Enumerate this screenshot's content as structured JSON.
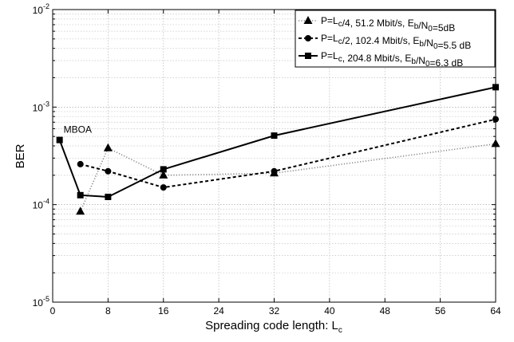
{
  "chart_data": {
    "type": "line",
    "xlabel": "Spreading code length: L",
    "xlabel_sub": "c",
    "ylabel": "BER",
    "xscale": "linear",
    "yscale": "log",
    "xlim": [
      0,
      64
    ],
    "ylim": [
      1e-05,
      0.01
    ],
    "xticks": [
      0,
      8,
      16,
      24,
      32,
      40,
      48,
      56,
      64
    ],
    "yticks": [
      {
        "value": 1e-05,
        "base": "10",
        "exp": "-5"
      },
      {
        "value": 0.0001,
        "base": "10",
        "exp": "-4"
      },
      {
        "value": 0.001,
        "base": "10",
        "exp": "-3"
      },
      {
        "value": 0.01,
        "base": "10",
        "exp": "-2"
      }
    ],
    "grid": true,
    "legend_position": "top-right",
    "annotation": {
      "text": "MBOA",
      "x": 1,
      "y": 0.00046
    },
    "series": [
      {
        "legend_parts": [
          [
            "P=L",
            ""
          ],
          [
            "c",
            "sub"
          ],
          [
            "/4, 51.2 Mbit/s, E",
            ""
          ],
          [
            "b",
            "sub"
          ],
          [
            "/N",
            ""
          ],
          [
            "0",
            "sub"
          ],
          [
            "=5dB",
            ""
          ]
        ],
        "marker": "triangle",
        "line_style": "dotted",
        "color": "#8a8a8a",
        "x": [
          4,
          8,
          16,
          32,
          64
        ],
        "y": [
          8.5e-05,
          0.00038,
          0.0002,
          0.00021,
          0.00042
        ]
      },
      {
        "legend_parts": [
          [
            "P=L",
            ""
          ],
          [
            "c",
            "sub"
          ],
          [
            "/2, 102.4 Mbit/s, E",
            ""
          ],
          [
            "b",
            "sub"
          ],
          [
            "/N",
            ""
          ],
          [
            "0",
            "sub"
          ],
          [
            "=5.5 dB",
            ""
          ]
        ],
        "marker": "circle",
        "line_style": "dashed",
        "color": "#000000",
        "x": [
          4,
          8,
          16,
          32,
          64
        ],
        "y": [
          0.00026,
          0.00022,
          0.00015,
          0.00022,
          0.00075
        ]
      },
      {
        "legend_parts": [
          [
            "P=L",
            ""
          ],
          [
            "c",
            "sub"
          ],
          [
            ", 204.8 Mbit/s, E",
            ""
          ],
          [
            "b",
            "sub"
          ],
          [
            "/N",
            ""
          ],
          [
            "0",
            "sub"
          ],
          [
            "=6.3 dB",
            ""
          ]
        ],
        "marker": "square",
        "line_style": "solid",
        "color": "#000000",
        "x": [
          1,
          4,
          8,
          16,
          32,
          64
        ],
        "y": [
          0.00046,
          0.000125,
          0.00012,
          0.00023,
          0.00051,
          0.0016
        ]
      }
    ]
  }
}
